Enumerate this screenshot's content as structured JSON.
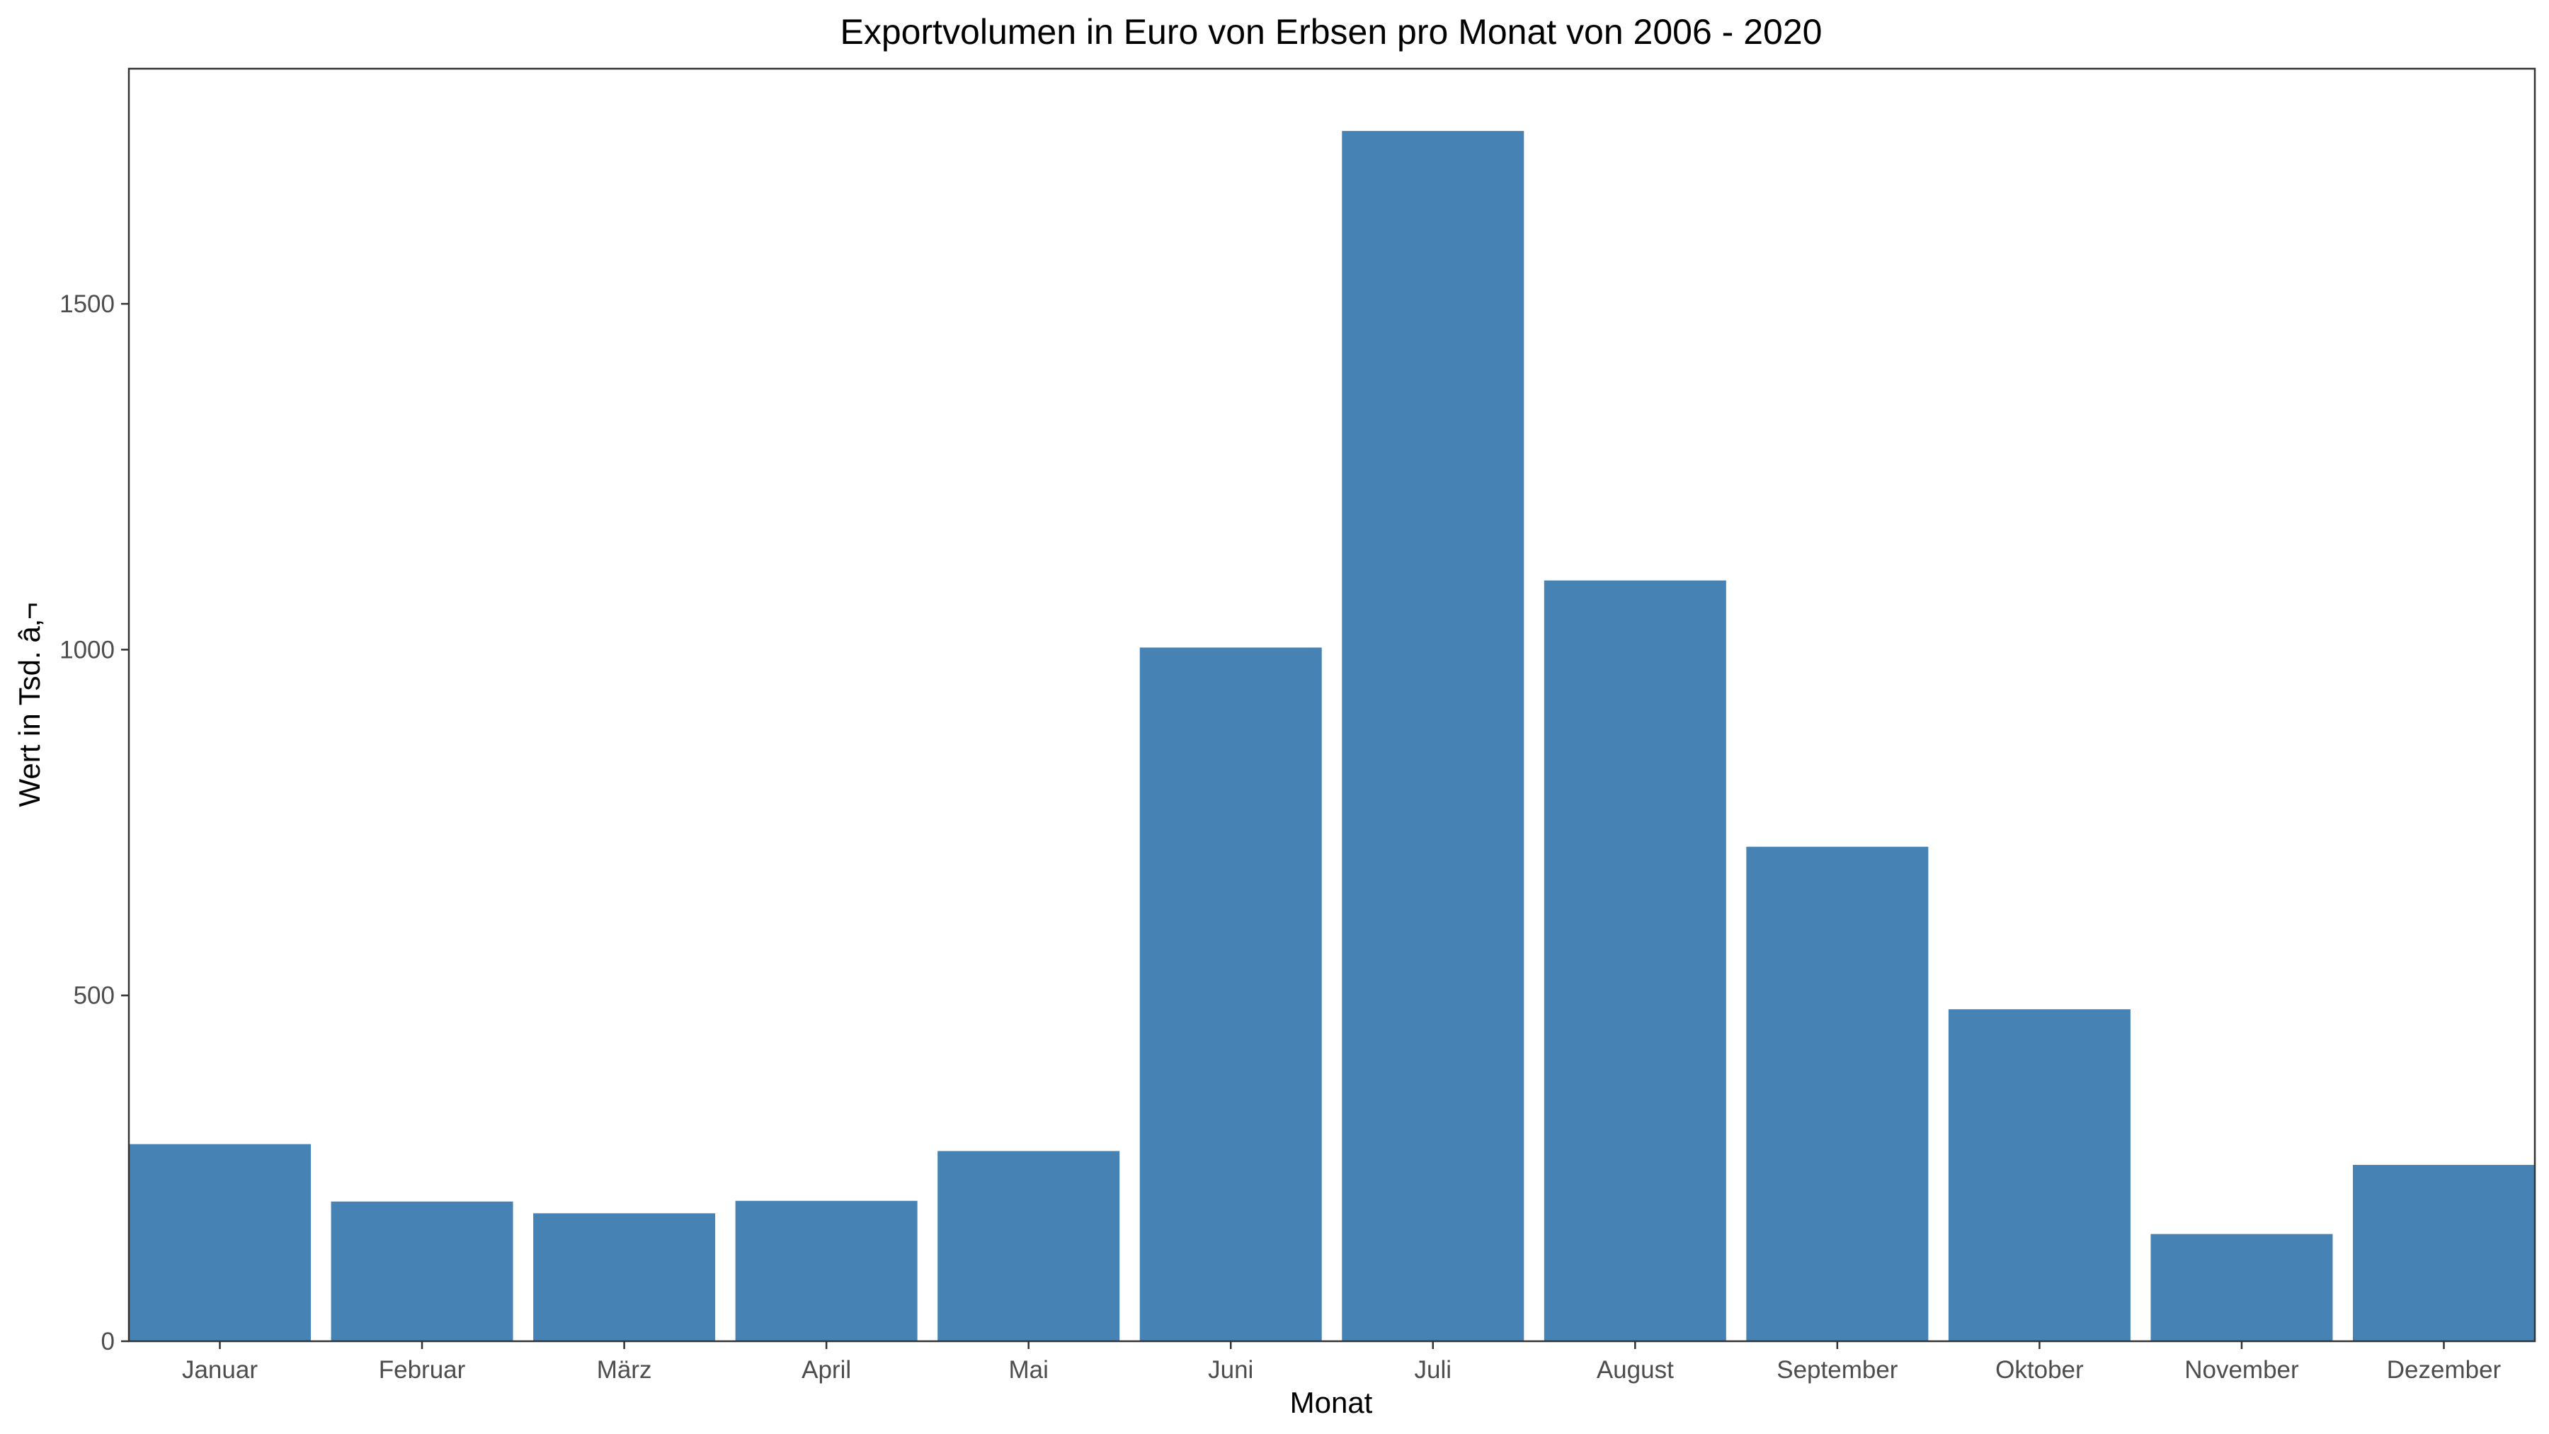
{
  "chart_data": {
    "type": "bar",
    "title": "Exportvolumen in Euro von Erbsen pro Monat von 2006 - 2020",
    "xlabel": "Monat",
    "ylabel": "Wert in Tsd. â‚¬",
    "categories": [
      "Januar",
      "Februar",
      "März",
      "April",
      "Mai",
      "Juni",
      "Juli",
      "August",
      "September",
      "Oktober",
      "November",
      "Dezember"
    ],
    "values": [
      285,
      202,
      185,
      203,
      275,
      1003,
      1750,
      1100,
      715,
      480,
      155,
      255
    ],
    "ylim": [
      0,
      1840
    ],
    "yticks": [
      0,
      500,
      1000,
      1500
    ],
    "grid": false,
    "legend": "none",
    "bar_color": "#4682B4"
  }
}
